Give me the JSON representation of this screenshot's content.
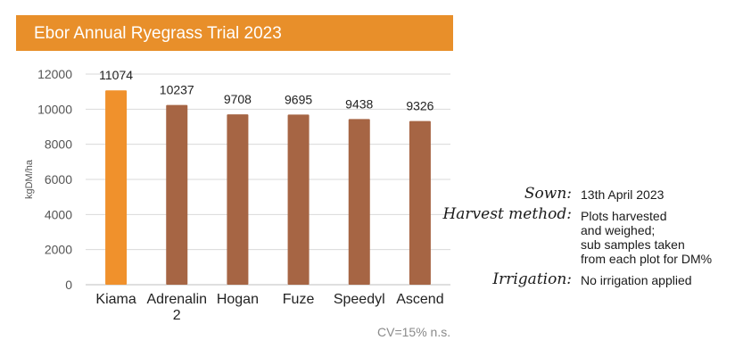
{
  "chart_data": {
    "type": "bar",
    "title": "Ebor Annual Ryegrass Trial 2023",
    "ylabel": "kgDM/ha",
    "xlabel": "",
    "ylim": [
      0,
      12000
    ],
    "yticks": [
      "0",
      "2000",
      "4000",
      "6000",
      "8000",
      "10000",
      "12000"
    ],
    "categories": [
      "Kiama",
      "Adrenalin 2",
      "Hogan",
      "Fuze",
      "Speedyl",
      "Ascend"
    ],
    "category_lines": [
      [
        "Kiama"
      ],
      [
        "Adrenalin",
        "2"
      ],
      [
        "Hogan"
      ],
      [
        "Fuze"
      ],
      [
        "Speedyl"
      ],
      [
        "Ascend"
      ]
    ],
    "values": [
      11074,
      10237,
      9708,
      9695,
      9438,
      9326
    ],
    "value_labels": [
      "11074",
      "10237",
      "9708",
      "9695",
      "9438",
      "9326"
    ],
    "highlight_index": 0,
    "colors": {
      "highlight": "#F0912C",
      "bar": "#A66544",
      "grid": "#d9d9d9",
      "banner": "#E88F2A"
    },
    "grid": true,
    "annotation": "CV=15% n.s."
  },
  "notes": {
    "sown_label": "Sown:",
    "sown_value": "13th April 2023",
    "harvest_label": "Harvest method:",
    "harvest_line1": "Plots harvested",
    "harvest_line2": "and weighed;",
    "harvest_line3": "sub samples taken",
    "harvest_line4": "from each plot for DM%",
    "irrigation_label": "Irrigation:",
    "irrigation_value": "No irrigation applied"
  }
}
